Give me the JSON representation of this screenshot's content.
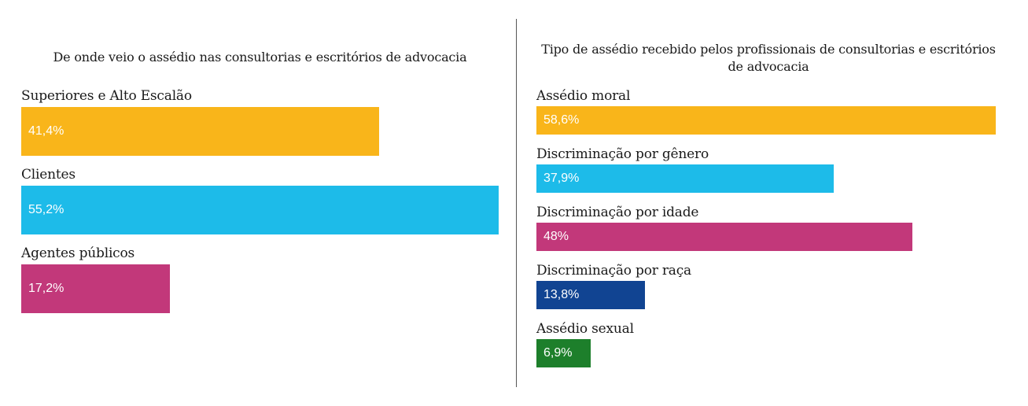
{
  "chart_data": [
    {
      "type": "bar",
      "orientation": "horizontal",
      "title": "De onde veio o assédio nas consultorias e escritórios de advocacia",
      "categories": [
        "Superiores e Alto Escalão",
        "Clientes",
        "Agentes públicos"
      ],
      "values": [
        41.4,
        55.2,
        17.2
      ],
      "value_labels": [
        "41,4%",
        "55,2%",
        "17,2%"
      ],
      "colors": [
        "#f9b51a",
        "#1dbbe9",
        "#c2387a"
      ],
      "unit": "%",
      "xlim": [
        0,
        55.2
      ],
      "grid": false,
      "legend": "none"
    },
    {
      "type": "bar",
      "orientation": "horizontal",
      "title": "Tipo de assédio recebido pelos profissionais de consultorias e escritórios de advocacia",
      "categories": [
        "Assédio moral",
        "Discriminação por gênero",
        "Discriminação por idade",
        "Discriminação por raça",
        "Assédio sexual"
      ],
      "values": [
        58.6,
        37.9,
        48,
        13.8,
        6.9
      ],
      "value_labels": [
        "58,6%",
        "37,9%",
        "48%",
        "13,8%",
        "6,9%"
      ],
      "colors": [
        "#f9b51a",
        "#1dbbe9",
        "#c2387a",
        "#114492",
        "#1d7f2b"
      ],
      "unit": "%",
      "xlim": [
        0,
        58.6
      ],
      "grid": false,
      "legend": "none"
    }
  ]
}
